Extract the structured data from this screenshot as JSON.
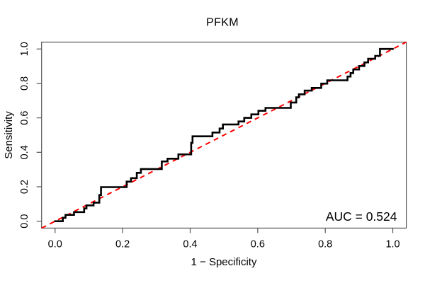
{
  "figure": {
    "background": "#ffffff"
  },
  "chart_data": {
    "type": "line",
    "subtype": "roc-step-curve",
    "title": "PFKM",
    "xlabel": "1 − Specificity",
    "ylabel": "Sensitivity",
    "annotation": "AUC = 0.524",
    "auc": 0.524,
    "xlim": [
      0,
      1
    ],
    "ylim": [
      0,
      1
    ],
    "grid": false,
    "x_ticks": [
      0,
      0.2,
      0.4,
      0.6,
      0.8,
      1.0
    ],
    "y_ticks": [
      0,
      0.2,
      0.4,
      0.6,
      0.8,
      1.0
    ],
    "x_tick_labels": [
      "0.0",
      "0.2",
      "0.4",
      "0.6",
      "0.8",
      "1.0"
    ],
    "y_tick_labels": [
      "0.0",
      "0.2",
      "0.4",
      "0.6",
      "0.8",
      "1.0"
    ],
    "colors": {
      "roc_curve": "#000000",
      "diagonal": "#ff0000",
      "axis": "#555555",
      "text": "#000000"
    },
    "series": [
      {
        "name": "ROC step curve",
        "draw": "step",
        "color": "#000000",
        "line_width": 2.6,
        "points": [
          [
            0.0,
            0.0
          ],
          [
            0.023,
            0.02
          ],
          [
            0.031,
            0.037
          ],
          [
            0.056,
            0.053
          ],
          [
            0.086,
            0.074
          ],
          [
            0.093,
            0.092
          ],
          [
            0.114,
            0.108
          ],
          [
            0.131,
            0.152
          ],
          [
            0.136,
            0.198
          ],
          [
            0.212,
            0.23
          ],
          [
            0.225,
            0.25
          ],
          [
            0.242,
            0.281
          ],
          [
            0.254,
            0.303
          ],
          [
            0.316,
            0.347
          ],
          [
            0.333,
            0.363
          ],
          [
            0.365,
            0.388
          ],
          [
            0.403,
            0.455
          ],
          [
            0.407,
            0.493
          ],
          [
            0.466,
            0.515
          ],
          [
            0.487,
            0.538
          ],
          [
            0.497,
            0.562
          ],
          [
            0.543,
            0.579
          ],
          [
            0.56,
            0.6
          ],
          [
            0.581,
            0.62
          ],
          [
            0.602,
            0.641
          ],
          [
            0.623,
            0.658
          ],
          [
            0.698,
            0.689
          ],
          [
            0.714,
            0.719
          ],
          [
            0.722,
            0.737
          ],
          [
            0.739,
            0.758
          ],
          [
            0.76,
            0.774
          ],
          [
            0.788,
            0.799
          ],
          [
            0.806,
            0.818
          ],
          [
            0.866,
            0.84
          ],
          [
            0.875,
            0.86
          ],
          [
            0.883,
            0.881
          ],
          [
            0.9,
            0.901
          ],
          [
            0.916,
            0.922
          ],
          [
            0.927,
            0.943
          ],
          [
            0.948,
            0.96
          ],
          [
            0.962,
            1.0
          ],
          [
            1.0,
            1.0
          ]
        ]
      },
      {
        "name": "chance diagonal",
        "draw": "line",
        "style": "dashed",
        "color": "#ff0000",
        "line_width": 2,
        "points": [
          [
            0,
            0
          ],
          [
            1,
            1
          ]
        ]
      }
    ]
  }
}
